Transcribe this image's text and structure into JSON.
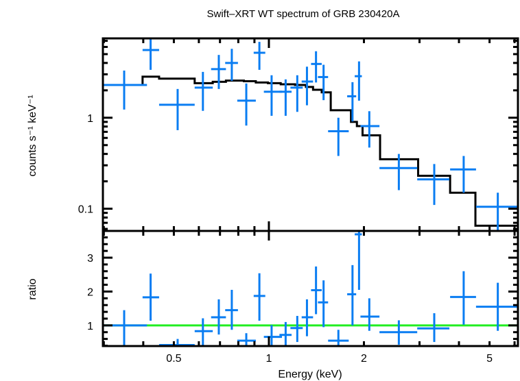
{
  "chart_data": {
    "type": "scatter",
    "title": "Swift–XRT WT spectrum of GRB 230420A",
    "xlabel": "Energy (keV)",
    "xscale": "log",
    "xlim": [
      0.298,
      6.15
    ],
    "x_tick_labels": [
      "0.5",
      "1",
      "2",
      "5"
    ],
    "x_ticks": [
      0.5,
      1,
      2,
      5
    ],
    "colors": {
      "data": "#0a7df2",
      "model": "#000000",
      "ratio_line": "#22ee22"
    },
    "panels": [
      {
        "name": "spectrum",
        "ylabel": "counts s⁻¹ keV⁻¹",
        "yscale": "log",
        "ylim": [
          0.057,
          7.45
        ],
        "y_ticks": [
          0.1,
          1
        ],
        "y_tick_labels": [
          "0.1",
          "1"
        ],
        "series": [
          {
            "name": "data",
            "points": [
              {
                "x": 0.348,
                "xlo": 0.298,
                "xhi": 0.411,
                "y": 2.29,
                "ylo": 1.23,
                "yhi": 3.3
              },
              {
                "x": 0.422,
                "xlo": 0.398,
                "xhi": 0.449,
                "y": 5.55,
                "ylo": 3.36,
                "yhi": 7.4
              },
              {
                "x": 0.514,
                "xlo": 0.449,
                "xhi": 0.582,
                "y": 1.39,
                "ylo": 0.73,
                "yhi": 2.07
              },
              {
                "x": 0.618,
                "xlo": 0.582,
                "xhi": 0.664,
                "y": 2.14,
                "ylo": 1.19,
                "yhi": 3.19
              },
              {
                "x": 0.694,
                "xlo": 0.656,
                "xhi": 0.731,
                "y": 3.42,
                "ylo": 2.07,
                "yhi": 4.9
              },
              {
                "x": 0.763,
                "xlo": 0.727,
                "xhi": 0.798,
                "y": 4.0,
                "ylo": 2.54,
                "yhi": 5.72
              },
              {
                "x": 0.848,
                "xlo": 0.794,
                "xhi": 0.909,
                "y": 1.54,
                "ylo": 0.82,
                "yhi": 2.38
              },
              {
                "x": 0.933,
                "xlo": 0.895,
                "xhi": 0.974,
                "y": 5.18,
                "ylo": 3.36,
                "yhi": 6.82
              },
              {
                "x": 1.02,
                "xlo": 0.964,
                "xhi": 1.1,
                "y": 1.93,
                "ylo": 1.05,
                "yhi": 2.93
              },
              {
                "x": 1.13,
                "xlo": 1.08,
                "xhi": 1.18,
                "y": 1.93,
                "ylo": 1.05,
                "yhi": 2.64
              },
              {
                "x": 1.23,
                "xlo": 1.17,
                "xhi": 1.28,
                "y": 2.14,
                "ylo": 1.16,
                "yhi": 2.93
              },
              {
                "x": 1.32,
                "xlo": 1.27,
                "xhi": 1.38,
                "y": 2.5,
                "ylo": 1.37,
                "yhi": 3.64
              },
              {
                "x": 1.41,
                "xlo": 1.36,
                "xhi": 1.47,
                "y": 3.9,
                "ylo": 2.44,
                "yhi": 5.38
              },
              {
                "x": 1.49,
                "xlo": 1.43,
                "xhi": 1.54,
                "y": 2.8,
                "ylo": 1.56,
                "yhi": 3.82
              },
              {
                "x": 1.66,
                "xlo": 1.54,
                "xhi": 1.79,
                "y": 0.71,
                "ylo": 0.38,
                "yhi": 1.0
              },
              {
                "x": 1.84,
                "xlo": 1.77,
                "xhi": 1.89,
                "y": 1.72,
                "ylo": 0.91,
                "yhi": 2.46
              },
              {
                "x": 1.93,
                "xlo": 1.87,
                "xhi": 1.97,
                "y": 2.86,
                "ylo": 1.54,
                "yhi": 4.16
              },
              {
                "x": 2.08,
                "xlo": 1.95,
                "xhi": 2.24,
                "y": 0.81,
                "ylo": 0.47,
                "yhi": 1.18
              },
              {
                "x": 2.58,
                "xlo": 2.24,
                "xhi": 2.95,
                "y": 0.28,
                "ylo": 0.16,
                "yhi": 0.4
              },
              {
                "x": 3.34,
                "xlo": 2.95,
                "xhi": 3.73,
                "y": 0.21,
                "ylo": 0.11,
                "yhi": 0.31
              },
              {
                "x": 4.14,
                "xlo": 3.75,
                "xhi": 4.53,
                "y": 0.27,
                "ylo": 0.15,
                "yhi": 0.38
              },
              {
                "x": 5.31,
                "xlo": 4.53,
                "xhi": 6.15,
                "y": 0.105,
                "ylo": 0.057,
                "yhi": 0.15
              }
            ]
          },
          {
            "name": "model",
            "steps": [
              {
                "xlo": 0.298,
                "xhi": 0.398,
                "y": 2.29
              },
              {
                "xlo": 0.398,
                "xhi": 0.449,
                "y": 2.83
              },
              {
                "xlo": 0.449,
                "xhi": 0.582,
                "y": 2.69
              },
              {
                "xlo": 0.582,
                "xhi": 0.664,
                "y": 2.4
              },
              {
                "xlo": 0.664,
                "xhi": 0.731,
                "y": 2.48
              },
              {
                "xlo": 0.731,
                "xhi": 0.833,
                "y": 2.56
              },
              {
                "xlo": 0.833,
                "xhi": 0.909,
                "y": 2.52
              },
              {
                "xlo": 0.909,
                "xhi": 0.993,
                "y": 2.44
              },
              {
                "xlo": 0.993,
                "xhi": 1.09,
                "y": 2.4
              },
              {
                "xlo": 1.09,
                "xhi": 1.21,
                "y": 2.33
              },
              {
                "xlo": 1.21,
                "xhi": 1.31,
                "y": 2.29
              },
              {
                "xlo": 1.31,
                "xhi": 1.38,
                "y": 2.18
              },
              {
                "xlo": 1.38,
                "xhi": 1.47,
                "y": 2.03
              },
              {
                "xlo": 1.47,
                "xhi": 1.57,
                "y": 1.9
              },
              {
                "xlo": 1.57,
                "xhi": 1.82,
                "y": 1.21
              },
              {
                "xlo": 1.82,
                "xhi": 1.9,
                "y": 0.9
              },
              {
                "xlo": 1.9,
                "xhi": 1.98,
                "y": 0.81
              },
              {
                "xlo": 1.98,
                "xhi": 2.25,
                "y": 0.64
              },
              {
                "xlo": 2.25,
                "xhi": 2.97,
                "y": 0.35
              },
              {
                "xlo": 2.97,
                "xhi": 3.75,
                "y": 0.23
              },
              {
                "xlo": 3.75,
                "xhi": 4.51,
                "y": 0.15
              },
              {
                "xlo": 4.51,
                "xhi": 6.15,
                "y": 0.065
              }
            ]
          }
        ]
      },
      {
        "name": "ratio",
        "ylabel": "ratio",
        "yscale": "linear",
        "ylim": [
          0.39,
          3.79
        ],
        "y_ticks": [
          1,
          2,
          3
        ],
        "y_tick_labels": [
          "1",
          "2",
          "3"
        ],
        "reference_line": 1,
        "series": [
          {
            "name": "data",
            "points": [
              {
                "x": 0.348,
                "xlo": 0.298,
                "xhi": 0.411,
                "y": 1.0,
                "ylo": 0.42,
                "yhi": 1.45
              },
              {
                "x": 0.422,
                "xlo": 0.398,
                "xhi": 0.449,
                "y": 1.83,
                "ylo": 1.14,
                "yhi": 2.53
              },
              {
                "x": 0.514,
                "xlo": 0.449,
                "xhi": 0.582,
                "y": 0.42,
                "ylo": 0.39,
                "yhi": 0.6
              },
              {
                "x": 0.618,
                "xlo": 0.582,
                "xhi": 0.664,
                "y": 0.83,
                "ylo": 0.39,
                "yhi": 1.21
              },
              {
                "x": 0.694,
                "xlo": 0.656,
                "xhi": 0.731,
                "y": 1.24,
                "ylo": 0.73,
                "yhi": 1.77
              },
              {
                "x": 0.763,
                "xlo": 0.727,
                "xhi": 0.798,
                "y": 1.45,
                "ylo": 0.87,
                "yhi": 2.05
              },
              {
                "x": 0.848,
                "xlo": 0.794,
                "xhi": 0.909,
                "y": 0.55,
                "ylo": 0.39,
                "yhi": 0.77
              },
              {
                "x": 0.933,
                "xlo": 0.895,
                "xhi": 0.974,
                "y": 1.87,
                "ylo": 1.14,
                "yhi": 2.54
              },
              {
                "x": 1.02,
                "xlo": 0.964,
                "xhi": 1.1,
                "y": 0.66,
                "ylo": 0.39,
                "yhi": 1.01
              },
              {
                "x": 1.13,
                "xlo": 1.08,
                "xhi": 1.18,
                "y": 0.72,
                "ylo": 0.41,
                "yhi": 1.1
              },
              {
                "x": 1.23,
                "xlo": 1.17,
                "xhi": 1.28,
                "y": 0.92,
                "ylo": 0.51,
                "yhi": 1.28
              },
              {
                "x": 1.32,
                "xlo": 1.27,
                "xhi": 1.38,
                "y": 1.24,
                "ylo": 0.68,
                "yhi": 1.77
              },
              {
                "x": 1.41,
                "xlo": 1.36,
                "xhi": 1.47,
                "y": 2.04,
                "ylo": 1.33,
                "yhi": 2.74
              },
              {
                "x": 1.49,
                "xlo": 1.43,
                "xhi": 1.54,
                "y": 1.68,
                "ylo": 0.95,
                "yhi": 2.33
              },
              {
                "x": 1.66,
                "xlo": 1.54,
                "xhi": 1.79,
                "y": 0.55,
                "ylo": 0.39,
                "yhi": 0.87
              },
              {
                "x": 1.84,
                "xlo": 1.77,
                "xhi": 1.89,
                "y": 1.92,
                "ylo": 1.0,
                "yhi": 2.78
              },
              {
                "x": 1.93,
                "xlo": 1.87,
                "xhi": 1.97,
                "y": 3.69,
                "ylo": 2.05,
                "yhi": 3.79
              },
              {
                "x": 2.08,
                "xlo": 1.95,
                "xhi": 2.24,
                "y": 1.26,
                "ylo": 0.84,
                "yhi": 1.8
              },
              {
                "x": 2.58,
                "xlo": 2.24,
                "xhi": 2.95,
                "y": 0.8,
                "ylo": 0.43,
                "yhi": 1.15
              },
              {
                "x": 3.34,
                "xlo": 2.95,
                "xhi": 3.73,
                "y": 0.91,
                "ylo": 0.51,
                "yhi": 1.36
              },
              {
                "x": 4.14,
                "xlo": 3.75,
                "xhi": 4.53,
                "y": 1.84,
                "ylo": 1.02,
                "yhi": 2.6
              },
              {
                "x": 5.31,
                "xlo": 4.53,
                "xhi": 6.15,
                "y": 1.55,
                "ylo": 0.84,
                "yhi": 2.26
              }
            ]
          }
        ]
      }
    ]
  }
}
